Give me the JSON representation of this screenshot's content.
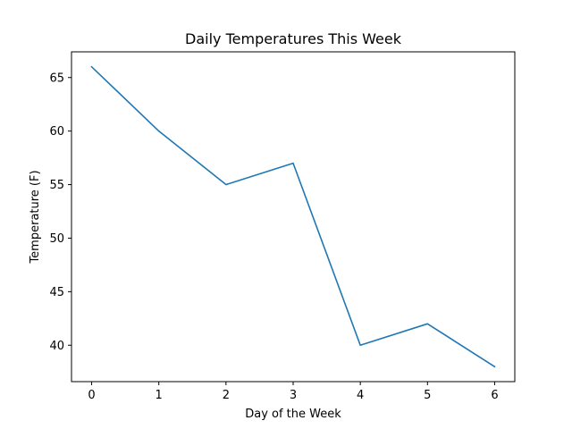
{
  "chart_data": {
    "type": "line",
    "title": "Daily Temperatures This Week",
    "xlabel": "Day of the Week",
    "ylabel": "Temperature (F)",
    "x": [
      0,
      1,
      2,
      3,
      4,
      5,
      6
    ],
    "series": [
      {
        "values": [
          66,
          60,
          55,
          57,
          40,
          42,
          38
        ],
        "color": "#1f77b4"
      }
    ],
    "xlim": [
      -0.3,
      6.3
    ],
    "ylim": [
      36.6,
      67.4
    ],
    "xticks": [
      0,
      1,
      2,
      3,
      4,
      5,
      6
    ],
    "yticks": [
      40,
      45,
      50,
      55,
      60,
      65
    ],
    "grid": false,
    "legend": "none"
  }
}
